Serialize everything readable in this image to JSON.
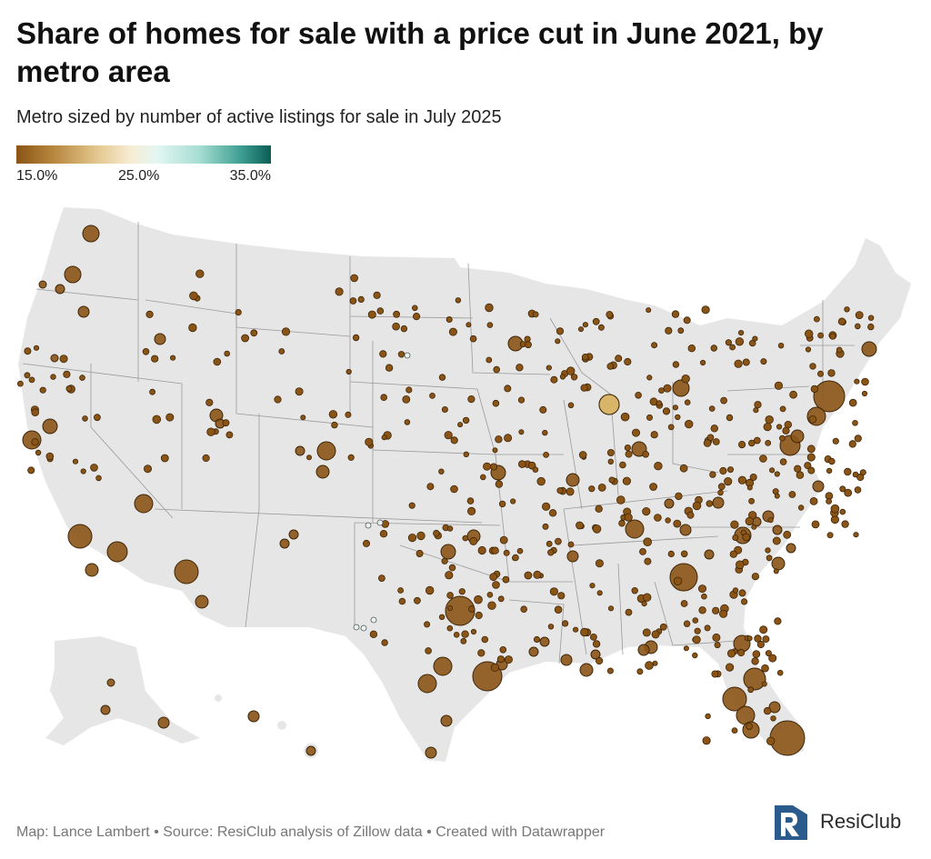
{
  "title": "Share of homes for sale with a price cut in June 2021, by metro area",
  "subtitle": "Metro sized by number of active listings for sale in July 2025",
  "legend": {
    "min_label": "15.0%",
    "mid_label": "25.0%",
    "max_label": "35.0%",
    "colors": [
      "#8a5416",
      "#e4c890",
      "#f7ecd3",
      "#e4f7f3",
      "#3f9f92",
      "#0b5e55"
    ]
  },
  "footer": "Map: Lance Lambert • Source: ResiClub analysis of Zillow data • Created with Datawrapper",
  "logo": {
    "text": "ResiClub",
    "color": "#2a5b8c"
  },
  "map": {
    "land_color": "#e6e6e6",
    "border_color": "#9a9a9a",
    "bubble_color": "#8a5416",
    "bubble_edge": "#3d2508"
  }
}
